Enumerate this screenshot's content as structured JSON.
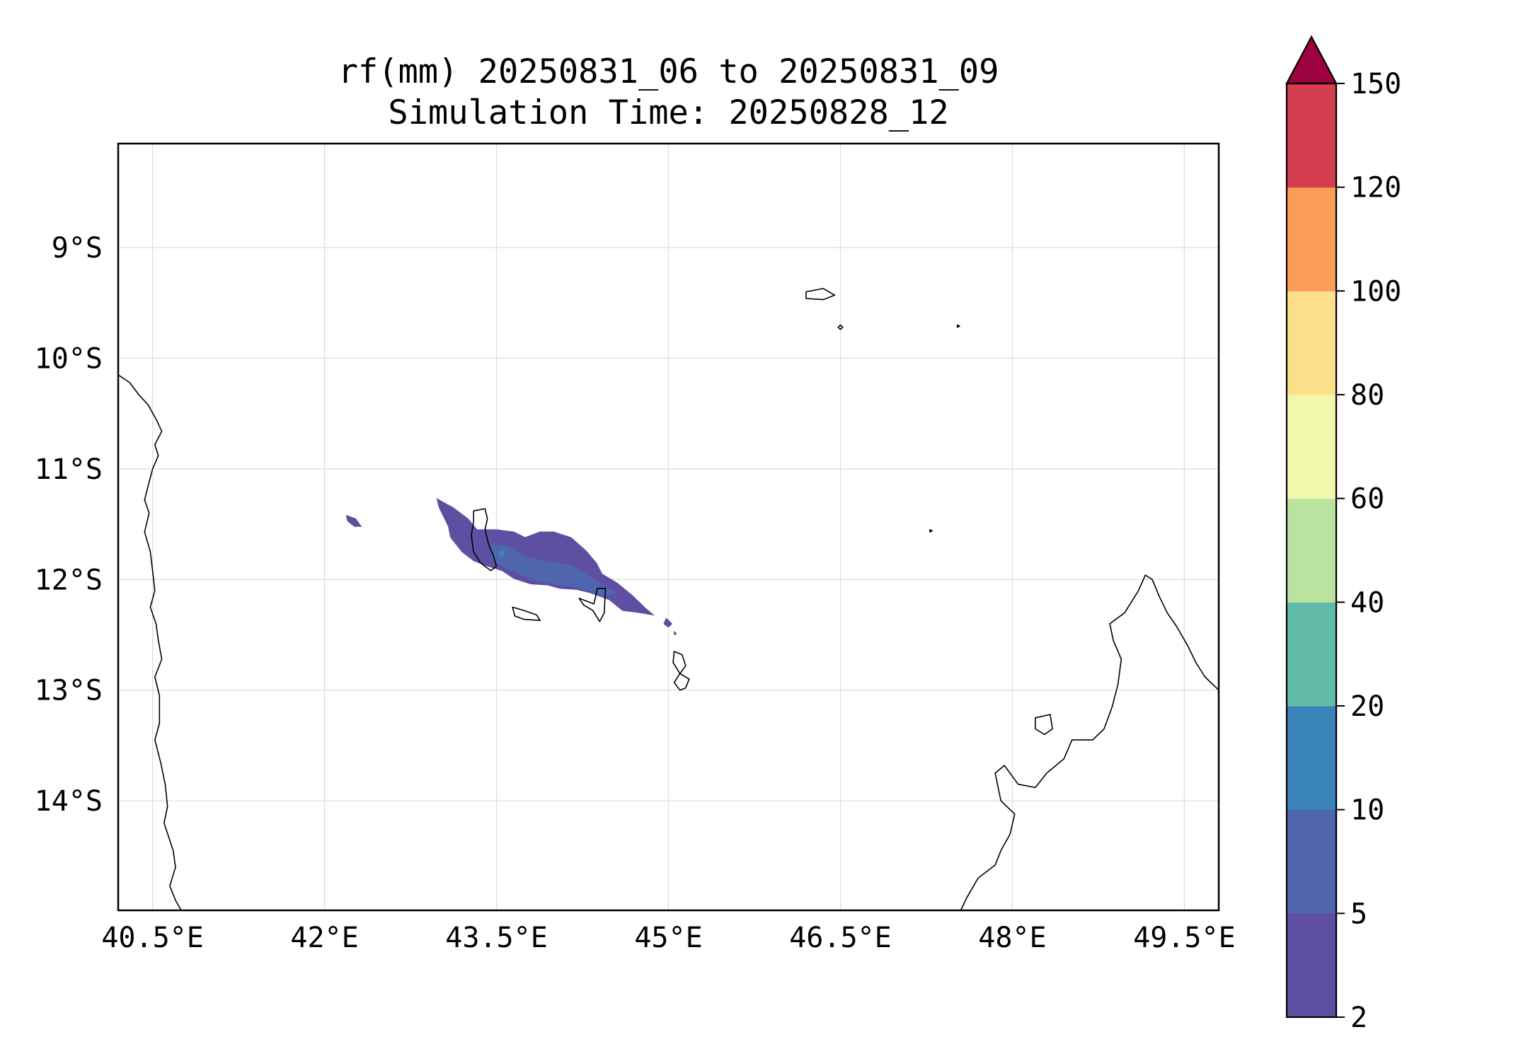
{
  "title": "rf(mm) 20250831_06 to 20250831_09",
  "subtitle": "Simulation Time: 20250828_12",
  "map": {
    "lon_range": [
      40.2,
      49.8
    ],
    "lat_range": [
      -14.99,
      -8.06
    ],
    "lon_ticks": [
      {
        "value": 40.5,
        "label": "40.5°E"
      },
      {
        "value": 42.0,
        "label": "42°E"
      },
      {
        "value": 43.5,
        "label": "43.5°E"
      },
      {
        "value": 45.0,
        "label": "45°E"
      },
      {
        "value": 46.5,
        "label": "46.5°E"
      },
      {
        "value": 48.0,
        "label": "48°E"
      },
      {
        "value": 49.5,
        "label": "49.5°E"
      }
    ],
    "lat_ticks": [
      {
        "value": -9,
        "label": "9°S"
      },
      {
        "value": -10,
        "label": "10°S"
      },
      {
        "value": -11,
        "label": "11°S"
      },
      {
        "value": -12,
        "label": "12°S"
      },
      {
        "value": -13,
        "label": "13°S"
      },
      {
        "value": -14,
        "label": "14°S"
      }
    ],
    "gridlines": true
  },
  "colorbar": {
    "levels": [
      2,
      5,
      10,
      20,
      40,
      60,
      80,
      100,
      120,
      150
    ],
    "tick_labels": [
      "2",
      "5",
      "10",
      "20",
      "40",
      "60",
      "80",
      "100",
      "120",
      "150"
    ],
    "colors": [
      "#5e4fa2",
      "#4f65ad",
      "#3a84bb",
      "#62bba9",
      "#bae3a0",
      "#f2f8ae",
      "#fddf8b",
      "#f99d59",
      "#d53e4f"
    ],
    "extend_color": "#9e0142",
    "extend": "max"
  },
  "rainfall_areas": [
    {
      "level_band": "2-5",
      "color": "#5e4fa2",
      "polygon": [
        [
          42.98,
          -11.27
        ],
        [
          43.12,
          -11.35
        ],
        [
          43.25,
          -11.45
        ],
        [
          43.33,
          -11.55
        ],
        [
          43.5,
          -11.55
        ],
        [
          43.65,
          -11.57
        ],
        [
          43.75,
          -11.62
        ],
        [
          43.88,
          -11.57
        ],
        [
          44.0,
          -11.57
        ],
        [
          44.15,
          -11.62
        ],
        [
          44.28,
          -11.74
        ],
        [
          44.37,
          -11.85
        ],
        [
          44.42,
          -11.95
        ],
        [
          44.55,
          -12.03
        ],
        [
          44.68,
          -12.14
        ],
        [
          44.8,
          -12.26
        ],
        [
          44.87,
          -12.32
        ],
        [
          44.75,
          -12.3
        ],
        [
          44.6,
          -12.28
        ],
        [
          44.48,
          -12.18
        ],
        [
          44.32,
          -12.12
        ],
        [
          44.2,
          -12.09
        ],
        [
          44.05,
          -12.08
        ],
        [
          43.95,
          -12.05
        ],
        [
          43.8,
          -12.04
        ],
        [
          43.65,
          -11.99
        ],
        [
          43.55,
          -11.92
        ],
        [
          43.4,
          -11.87
        ],
        [
          43.3,
          -11.83
        ],
        [
          43.2,
          -11.75
        ],
        [
          43.1,
          -11.62
        ],
        [
          43.08,
          -11.52
        ],
        [
          43.0,
          -11.35
        ]
      ]
    },
    {
      "level_band": "2-5",
      "color": "#5e4fa2",
      "polygon": [
        [
          42.19,
          -11.42
        ],
        [
          42.27,
          -11.45
        ],
        [
          42.32,
          -11.52
        ],
        [
          42.26,
          -11.52
        ],
        [
          42.2,
          -11.47
        ]
      ]
    },
    {
      "level_band": "2-5",
      "color": "#5e4fa2",
      "polygon": [
        [
          44.98,
          -12.35
        ],
        [
          45.03,
          -12.4
        ],
        [
          45.0,
          -12.43
        ],
        [
          44.96,
          -12.4
        ]
      ]
    },
    {
      "level_band": "2-5",
      "color": "#5e4fa2",
      "polygon": [
        [
          45.05,
          -12.47
        ],
        [
          45.07,
          -12.49
        ],
        [
          45.05,
          -12.5
        ]
      ]
    },
    {
      "level_band": "5-10",
      "color": "#4f65ad",
      "polygon": [
        [
          43.45,
          -11.68
        ],
        [
          43.6,
          -11.7
        ],
        [
          43.72,
          -11.78
        ],
        [
          43.85,
          -11.82
        ],
        [
          44.0,
          -11.85
        ],
        [
          44.15,
          -11.87
        ],
        [
          44.28,
          -11.95
        ],
        [
          44.42,
          -12.05
        ],
        [
          44.55,
          -12.12
        ],
        [
          44.45,
          -12.15
        ],
        [
          44.3,
          -12.1
        ],
        [
          44.15,
          -12.06
        ],
        [
          44.0,
          -12.04
        ],
        [
          43.85,
          -12.01
        ],
        [
          43.7,
          -11.95
        ],
        [
          43.55,
          -11.88
        ],
        [
          43.45,
          -11.8
        ]
      ]
    },
    {
      "level_band": "10-20",
      "color": "#3a84bb",
      "polygon": [
        [
          43.52,
          -11.74
        ],
        [
          43.56,
          -11.73
        ],
        [
          43.57,
          -11.78
        ],
        [
          43.53,
          -11.79
        ]
      ]
    }
  ],
  "coastlines": [
    {
      "name": "africa-mainland",
      "points": [
        [
          40.2,
          -10.15
        ],
        [
          40.3,
          -10.22
        ],
        [
          40.38,
          -10.33
        ],
        [
          40.46,
          -10.42
        ],
        [
          40.53,
          -10.55
        ],
        [
          40.58,
          -10.66
        ],
        [
          40.52,
          -10.78
        ],
        [
          40.55,
          -10.88
        ],
        [
          40.5,
          -11.0
        ],
        [
          40.47,
          -11.12
        ],
        [
          40.43,
          -11.28
        ],
        [
          40.47,
          -11.4
        ],
        [
          40.43,
          -11.57
        ],
        [
          40.48,
          -11.75
        ],
        [
          40.5,
          -11.92
        ],
        [
          40.52,
          -12.1
        ],
        [
          40.48,
          -12.25
        ],
        [
          40.53,
          -12.4
        ],
        [
          40.55,
          -12.55
        ],
        [
          40.58,
          -12.72
        ],
        [
          40.52,
          -12.88
        ],
        [
          40.56,
          -13.05
        ],
        [
          40.56,
          -13.3
        ],
        [
          40.52,
          -13.45
        ],
        [
          40.57,
          -13.65
        ],
        [
          40.61,
          -13.85
        ],
        [
          40.63,
          -14.05
        ],
        [
          40.6,
          -14.2
        ],
        [
          40.68,
          -14.45
        ],
        [
          40.7,
          -14.6
        ],
        [
          40.65,
          -14.77
        ],
        [
          40.7,
          -14.9
        ],
        [
          40.75,
          -14.99
        ]
      ]
    },
    {
      "name": "madagascar",
      "points": [
        [
          49.8,
          -13.0
        ],
        [
          49.68,
          -12.88
        ],
        [
          49.6,
          -12.75
        ],
        [
          49.53,
          -12.6
        ],
        [
          49.43,
          -12.42
        ],
        [
          49.35,
          -12.3
        ],
        [
          49.28,
          -12.15
        ],
        [
          49.22,
          -12.0
        ],
        [
          49.16,
          -11.96
        ],
        [
          49.1,
          -12.1
        ],
        [
          48.98,
          -12.3
        ],
        [
          48.85,
          -12.4
        ],
        [
          48.88,
          -12.55
        ],
        [
          48.95,
          -12.72
        ],
        [
          48.92,
          -12.95
        ],
        [
          48.87,
          -13.15
        ],
        [
          48.8,
          -13.35
        ],
        [
          48.7,
          -13.45
        ],
        [
          48.52,
          -13.45
        ],
        [
          48.45,
          -13.62
        ],
        [
          48.3,
          -13.75
        ],
        [
          48.2,
          -13.88
        ],
        [
          48.05,
          -13.85
        ],
        [
          47.93,
          -13.68
        ],
        [
          47.85,
          -13.75
        ],
        [
          47.9,
          -14.0
        ],
        [
          48.02,
          -14.12
        ],
        [
          47.98,
          -14.3
        ],
        [
          47.9,
          -14.45
        ],
        [
          47.85,
          -14.58
        ],
        [
          47.7,
          -14.7
        ],
        [
          47.6,
          -14.88
        ],
        [
          47.55,
          -14.99
        ]
      ]
    },
    {
      "name": "grande-comore",
      "closed": true,
      "points": [
        [
          43.3,
          -11.38
        ],
        [
          43.4,
          -11.36
        ],
        [
          43.42,
          -11.45
        ],
        [
          43.4,
          -11.55
        ],
        [
          43.43,
          -11.68
        ],
        [
          43.47,
          -11.78
        ],
        [
          43.5,
          -11.88
        ],
        [
          43.45,
          -11.92
        ],
        [
          43.36,
          -11.85
        ],
        [
          43.3,
          -11.75
        ],
        [
          43.28,
          -11.6
        ],
        [
          43.3,
          -11.48
        ]
      ]
    },
    {
      "name": "moheli",
      "closed": true,
      "points": [
        [
          43.64,
          -12.25
        ],
        [
          43.74,
          -12.28
        ],
        [
          43.85,
          -12.32
        ],
        [
          43.88,
          -12.37
        ],
        [
          43.74,
          -12.36
        ],
        [
          43.66,
          -12.33
        ]
      ]
    },
    {
      "name": "anjouan",
      "closed": true,
      "points": [
        [
          44.22,
          -12.17
        ],
        [
          44.35,
          -12.22
        ],
        [
          44.38,
          -12.08
        ],
        [
          44.45,
          -12.08
        ],
        [
          44.44,
          -12.3
        ],
        [
          44.4,
          -12.38
        ],
        [
          44.34,
          -12.28
        ],
        [
          44.26,
          -12.23
        ]
      ]
    },
    {
      "name": "mayotte",
      "closed": true,
      "points": [
        [
          45.05,
          -12.65
        ],
        [
          45.12,
          -12.68
        ],
        [
          45.15,
          -12.78
        ],
        [
          45.1,
          -12.85
        ],
        [
          45.18,
          -12.9
        ],
        [
          45.15,
          -12.98
        ],
        [
          45.1,
          -13.0
        ],
        [
          45.05,
          -12.93
        ],
        [
          45.1,
          -12.85
        ],
        [
          45.04,
          -12.75
        ]
      ]
    },
    {
      "name": "aldabra",
      "closed": true,
      "points": [
        [
          46.2,
          -9.4
        ],
        [
          46.35,
          -9.37
        ],
        [
          46.45,
          -9.43
        ],
        [
          46.35,
          -9.47
        ],
        [
          46.2,
          -9.46
        ]
      ]
    },
    {
      "name": "assumption",
      "closed": true,
      "points": [
        [
          46.5,
          -9.7
        ],
        [
          46.52,
          -9.72
        ],
        [
          46.5,
          -9.74
        ],
        [
          46.48,
          -9.72
        ]
      ]
    },
    {
      "name": "cosmoledo",
      "closed": true,
      "points": [
        [
          47.52,
          -9.7
        ],
        [
          47.54,
          -9.71
        ],
        [
          47.52,
          -9.72
        ]
      ]
    },
    {
      "name": "glorieuses",
      "closed": true,
      "points": [
        [
          47.28,
          -11.55
        ],
        [
          47.3,
          -11.56
        ],
        [
          47.28,
          -11.57
        ]
      ]
    },
    {
      "name": "nosy-be",
      "closed": true,
      "points": [
        [
          48.2,
          -13.25
        ],
        [
          48.33,
          -13.22
        ],
        [
          48.35,
          -13.35
        ],
        [
          48.28,
          -13.4
        ],
        [
          48.2,
          -13.35
        ]
      ]
    }
  ]
}
